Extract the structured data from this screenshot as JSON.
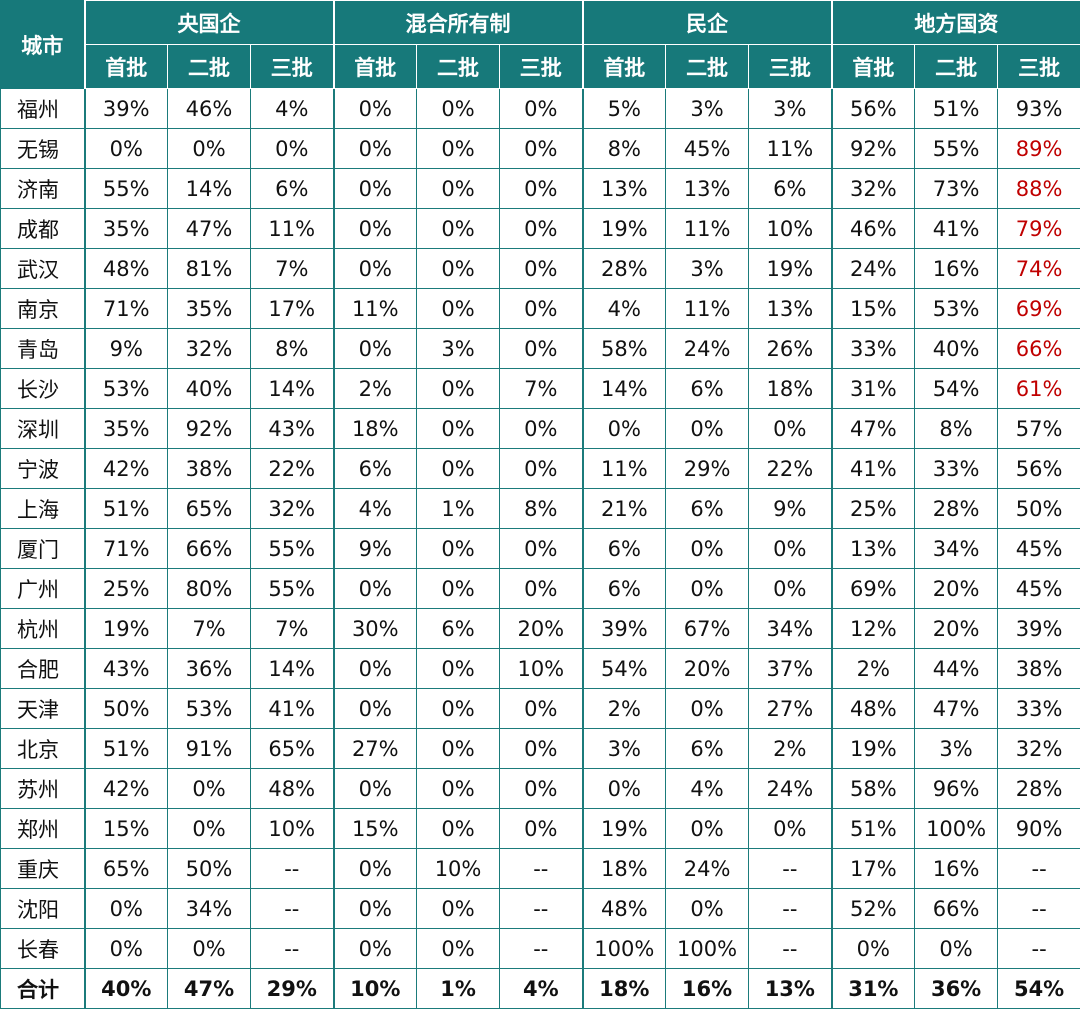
{
  "table": {
    "corner": "城市",
    "groups": [
      {
        "name": "央国企",
        "batches": [
          "首批",
          "二批",
          "三批"
        ]
      },
      {
        "name": "混合所有制",
        "batches": [
          "首批",
          "二批",
          "三批"
        ]
      },
      {
        "name": "民企",
        "batches": [
          "首批",
          "二批",
          "三批"
        ]
      },
      {
        "name": "地方国资",
        "batches": [
          "首批",
          "二批",
          "三批"
        ]
      }
    ],
    "rows": [
      [
        "福州",
        "39%",
        "46%",
        "4%",
        "0%",
        "0%",
        "0%",
        "5%",
        "3%",
        "3%",
        "56%",
        "51%",
        "93%"
      ],
      [
        "无锡",
        "0%",
        "0%",
        "0%",
        "0%",
        "0%",
        "0%",
        "8%",
        "45%",
        "11%",
        "92%",
        "55%",
        "89%"
      ],
      [
        "济南",
        "55%",
        "14%",
        "6%",
        "0%",
        "0%",
        "0%",
        "13%",
        "13%",
        "6%",
        "32%",
        "73%",
        "88%"
      ],
      [
        "成都",
        "35%",
        "47%",
        "11%",
        "0%",
        "0%",
        "0%",
        "19%",
        "11%",
        "10%",
        "46%",
        "41%",
        "79%"
      ],
      [
        "武汉",
        "48%",
        "81%",
        "7%",
        "0%",
        "0%",
        "0%",
        "28%",
        "3%",
        "19%",
        "24%",
        "16%",
        "74%"
      ],
      [
        "南京",
        "71%",
        "35%",
        "17%",
        "11%",
        "0%",
        "0%",
        "4%",
        "11%",
        "13%",
        "15%",
        "53%",
        "69%"
      ],
      [
        "青岛",
        "9%",
        "32%",
        "8%",
        "0%",
        "3%",
        "0%",
        "58%",
        "24%",
        "26%",
        "33%",
        "40%",
        "66%"
      ],
      [
        "长沙",
        "53%",
        "40%",
        "14%",
        "2%",
        "0%",
        "7%",
        "14%",
        "6%",
        "18%",
        "31%",
        "54%",
        "61%"
      ],
      [
        "深圳",
        "35%",
        "92%",
        "43%",
        "18%",
        "0%",
        "0%",
        "0%",
        "0%",
        "0%",
        "47%",
        "8%",
        "57%"
      ],
      [
        "宁波",
        "42%",
        "38%",
        "22%",
        "6%",
        "0%",
        "0%",
        "11%",
        "29%",
        "22%",
        "41%",
        "33%",
        "56%"
      ],
      [
        "上海",
        "51%",
        "65%",
        "32%",
        "4%",
        "1%",
        "8%",
        "21%",
        "6%",
        "9%",
        "25%",
        "28%",
        "50%"
      ],
      [
        "厦门",
        "71%",
        "66%",
        "55%",
        "9%",
        "0%",
        "0%",
        "6%",
        "0%",
        "0%",
        "13%",
        "34%",
        "45%"
      ],
      [
        "广州",
        "25%",
        "80%",
        "55%",
        "0%",
        "0%",
        "0%",
        "6%",
        "0%",
        "0%",
        "69%",
        "20%",
        "45%"
      ],
      [
        "杭州",
        "19%",
        "7%",
        "7%",
        "30%",
        "6%",
        "20%",
        "39%",
        "67%",
        "34%",
        "12%",
        "20%",
        "39%"
      ],
      [
        "合肥",
        "43%",
        "36%",
        "14%",
        "0%",
        "0%",
        "10%",
        "54%",
        "20%",
        "37%",
        "2%",
        "44%",
        "38%"
      ],
      [
        "天津",
        "50%",
        "53%",
        "41%",
        "0%",
        "0%",
        "0%",
        "2%",
        "0%",
        "27%",
        "48%",
        "47%",
        "33%"
      ],
      [
        "北京",
        "51%",
        "91%",
        "65%",
        "27%",
        "0%",
        "0%",
        "3%",
        "6%",
        "2%",
        "19%",
        "3%",
        "32%"
      ],
      [
        "苏州",
        "42%",
        "0%",
        "48%",
        "0%",
        "0%",
        "0%",
        "0%",
        "4%",
        "24%",
        "58%",
        "96%",
        "28%"
      ],
      [
        "郑州",
        "15%",
        "0%",
        "10%",
        "15%",
        "0%",
        "0%",
        "19%",
        "0%",
        "0%",
        "51%",
        "100%",
        "90%"
      ],
      [
        "重庆",
        "65%",
        "50%",
        "--",
        "0%",
        "10%",
        "--",
        "18%",
        "24%",
        "--",
        "17%",
        "16%",
        "--"
      ],
      [
        "沈阳",
        "0%",
        "34%",
        "--",
        "0%",
        "0%",
        "--",
        "48%",
        "0%",
        "--",
        "52%",
        "66%",
        "--"
      ],
      [
        "长春",
        "0%",
        "0%",
        "--",
        "0%",
        "0%",
        "--",
        "100%",
        "100%",
        "--",
        "0%",
        "0%",
        "--"
      ]
    ],
    "total": [
      "合计",
      "40%",
      "47%",
      "29%",
      "10%",
      "1%",
      "4%",
      "18%",
      "16%",
      "13%",
      "31%",
      "36%",
      "54%"
    ],
    "highlight_color": "#c00000",
    "highlight_rows": [
      1,
      2,
      3,
      4,
      5,
      6,
      7
    ]
  }
}
